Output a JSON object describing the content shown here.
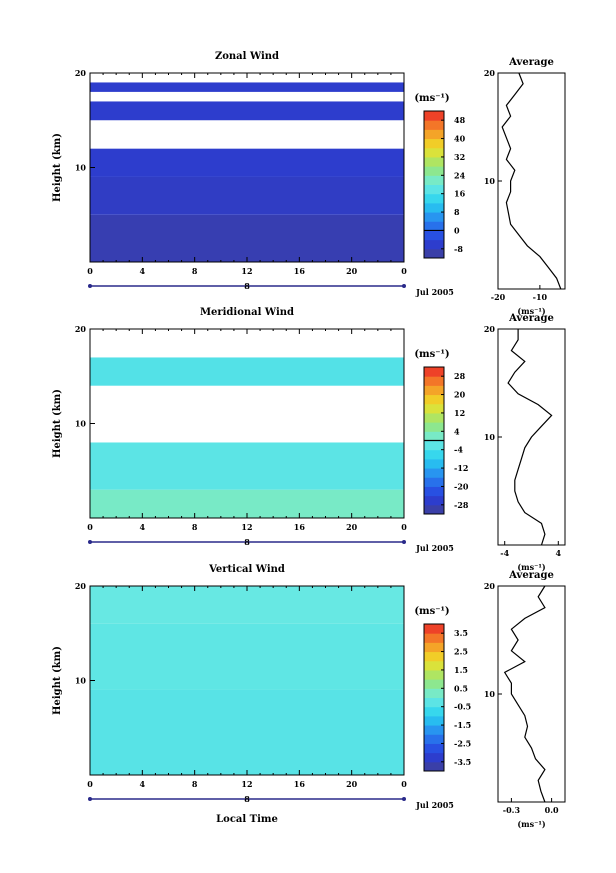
{
  "panels": [
    {
      "title": "Zonal Wind",
      "ylabel": "Height (km)",
      "ylim": [
        0,
        20
      ],
      "yticks": [
        "10",
        "20"
      ],
      "xlim": [
        0,
        24
      ],
      "xticks": [
        "0",
        "4",
        "8",
        "12",
        "16",
        "20",
        "0"
      ],
      "day_label": "8",
      "date_label": "Jul 2005",
      "unit_label": "(ms⁻¹)",
      "colorbar": {
        "ticks": [
          "48",
          "40",
          "32",
          "24",
          "16",
          "8",
          "0",
          "-8"
        ],
        "vmin": -12,
        "vmax": 52,
        "zero_line": 0
      },
      "average": {
        "title": "Average",
        "xlim": [
          -20,
          -4
        ],
        "xticks": [
          "-20",
          "-10"
        ],
        "xlabel": "(ms⁻¹)",
        "yticks": [
          "10",
          "20"
        ]
      }
    },
    {
      "title": "Meridional Wind",
      "ylabel": "Height (km)",
      "ylim": [
        0,
        20
      ],
      "yticks": [
        "10",
        "20"
      ],
      "xlim": [
        0,
        24
      ],
      "xticks": [
        "0",
        "4",
        "8",
        "12",
        "16",
        "20",
        "0"
      ],
      "day_label": "8",
      "date_label": "Jul 2005",
      "unit_label": "(ms⁻¹)",
      "colorbar": {
        "ticks": [
          "28",
          "20",
          "12",
          "4",
          "-4",
          "-12",
          "-20",
          "-28"
        ],
        "vmin": -32,
        "vmax": 32,
        "zero_line": 0
      },
      "average": {
        "title": "Average",
        "xlim": [
          -5,
          5
        ],
        "xticks": [
          "-4",
          "4"
        ],
        "xlabel": "(ms⁻¹)",
        "yticks": [
          "10",
          "20"
        ]
      }
    },
    {
      "title": "Vertical Wind",
      "ylabel": "Height (km)",
      "ylim": [
        0,
        20
      ],
      "yticks": [
        "10",
        "20"
      ],
      "xlim": [
        0,
        24
      ],
      "xticks": [
        "0",
        "4",
        "8",
        "12",
        "16",
        "20",
        "0"
      ],
      "day_label": "8",
      "date_label": "Jul 2005",
      "xlabel": "Local Time",
      "unit_label": "(ms⁻¹)",
      "colorbar": {
        "ticks": [
          "3.5",
          "2.5",
          "1.5",
          "0.5",
          "-0.5",
          "-1.5",
          "-2.5",
          "-3.5"
        ],
        "vmin": -4,
        "vmax": 4
      },
      "average": {
        "title": "Average",
        "xlim": [
          -0.4,
          0.1
        ],
        "xticks": [
          "-0.3",
          "0.0"
        ],
        "xlabel": "(ms⁻¹)",
        "yticks": [
          "10",
          "20"
        ]
      }
    }
  ],
  "chart_data": [
    {
      "type": "heatmap",
      "title": "Zonal Wind",
      "xlabel": "",
      "ylabel": "Height (km)",
      "xlim": [
        0,
        24
      ],
      "ylim": [
        0,
        20
      ],
      "colorbar_range": [
        -12,
        52
      ],
      "layers": [
        {
          "z_range": [
            0,
            5
          ],
          "value": -9
        },
        {
          "z_range": [
            5,
            9
          ],
          "value": -7
        },
        {
          "z_range": [
            9,
            12
          ],
          "value": -6
        },
        {
          "z_range": [
            12,
            15
          ],
          "value": "missing"
        },
        {
          "z_range": [
            15,
            17
          ],
          "value": -6
        },
        {
          "z_range": [
            17,
            18
          ],
          "value": "missing"
        },
        {
          "z_range": [
            18,
            19
          ],
          "value": -6
        }
      ],
      "average_profile": {
        "title": "Average",
        "xlim": [
          -20,
          -4
        ],
        "height": [
          0,
          1,
          2,
          3,
          4,
          5,
          6,
          7,
          8,
          9,
          10,
          11,
          12,
          13,
          14,
          15,
          16,
          17,
          18,
          19,
          20
        ],
        "value": [
          -5,
          -6,
          -8,
          -10,
          -13,
          -15,
          -17,
          -17.5,
          -18,
          -17,
          -17,
          -16,
          -18,
          -17,
          -18,
          -19,
          -17,
          -18,
          -16,
          -14,
          -15
        ]
      }
    },
    {
      "type": "heatmap",
      "title": "Meridional Wind",
      "xlabel": "",
      "ylabel": "Height (km)",
      "xlim": [
        0,
        24
      ],
      "ylim": [
        0,
        20
      ],
      "colorbar_range": [
        -32,
        32
      ],
      "layers": [
        {
          "z_range": [
            0,
            3
          ],
          "value": 2
        },
        {
          "z_range": [
            3,
            8
          ],
          "value": -2
        },
        {
          "z_range": [
            8,
            14
          ],
          "value": "missing"
        },
        {
          "z_range": [
            14,
            17
          ],
          "value": -3
        },
        {
          "z_range": [
            17,
            20
          ],
          "value": "missing"
        }
      ],
      "average_profile": {
        "title": "Average",
        "xlim": [
          -5,
          5
        ],
        "height": [
          0,
          1,
          2,
          3,
          4,
          5,
          6,
          7,
          8,
          9,
          10,
          11,
          12,
          13,
          14,
          15,
          16,
          17,
          18,
          19,
          20
        ],
        "value": [
          1.5,
          2,
          1.5,
          -1,
          -2,
          -2.5,
          -2.5,
          -2,
          -1.5,
          -1,
          0,
          1.5,
          3,
          1,
          -2,
          -3.5,
          -2.5,
          -1,
          -3,
          -2,
          -2
        ]
      }
    },
    {
      "type": "heatmap",
      "title": "Vertical Wind",
      "xlabel": "Local Time",
      "ylabel": "Height (km)",
      "xlim": [
        0,
        24
      ],
      "ylim": [
        0,
        20
      ],
      "colorbar_range": [
        -4,
        4
      ],
      "layers": [
        {
          "z_range": [
            0,
            9
          ],
          "value": -0.3
        },
        {
          "z_range": [
            9,
            16
          ],
          "value": -0.2
        },
        {
          "z_range": [
            16,
            20
          ],
          "value": -0.1
        }
      ],
      "average_profile": {
        "title": "Average",
        "xlim": [
          -0.4,
          0.1
        ],
        "height": [
          0,
          1,
          2,
          3,
          4,
          5,
          6,
          7,
          8,
          9,
          10,
          11,
          12,
          13,
          14,
          15,
          16,
          17,
          18,
          19,
          20
        ],
        "value": [
          -0.05,
          -0.08,
          -0.1,
          -0.05,
          -0.12,
          -0.15,
          -0.2,
          -0.18,
          -0.2,
          -0.25,
          -0.3,
          -0.3,
          -0.35,
          -0.2,
          -0.3,
          -0.25,
          -0.3,
          -0.2,
          -0.05,
          -0.1,
          -0.05
        ]
      }
    }
  ]
}
